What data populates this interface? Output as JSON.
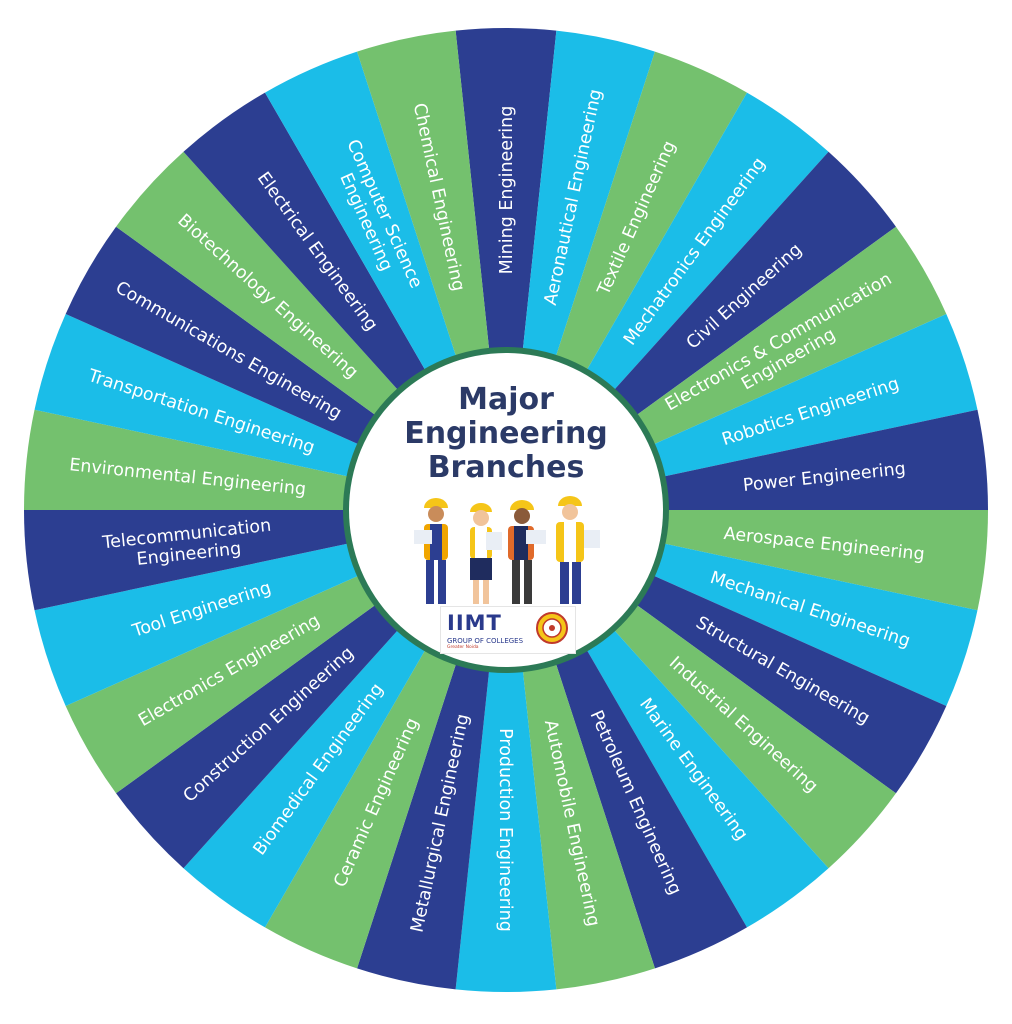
{
  "title_lines": [
    "Major",
    "Engineering",
    "Branches"
  ],
  "segments": [
    {
      "lines": [
        "Mining Engineering"
      ],
      "color": "dark"
    },
    {
      "lines": [
        "Aeronautical Engineering"
      ],
      "color": "cyan"
    },
    {
      "lines": [
        "Textile Engineering"
      ],
      "color": "green"
    },
    {
      "lines": [
        "Mechatronics Engineering"
      ],
      "color": "cyan"
    },
    {
      "lines": [
        "Civil Engineering"
      ],
      "color": "dark"
    },
    {
      "lines": [
        "Electronics & Communication",
        "Engineering"
      ],
      "color": "green"
    },
    {
      "lines": [
        "Robotics Engineering"
      ],
      "color": "cyan"
    },
    {
      "lines": [
        "Power Engineering"
      ],
      "color": "dark"
    },
    {
      "lines": [
        "Aerospace Engineering"
      ],
      "color": "green"
    },
    {
      "lines": [
        "Mechanical Engineering"
      ],
      "color": "cyan"
    },
    {
      "lines": [
        "Structural Engineering"
      ],
      "color": "dark"
    },
    {
      "lines": [
        "Industrial Engineering"
      ],
      "color": "green"
    },
    {
      "lines": [
        "Marine Engineering"
      ],
      "color": "cyan"
    },
    {
      "lines": [
        "Petroleum Engineering"
      ],
      "color": "dark"
    },
    {
      "lines": [
        "Automobile Engineering"
      ],
      "color": "green"
    },
    {
      "lines": [
        "Production Engineering"
      ],
      "color": "cyan"
    },
    {
      "lines": [
        "Metallurgical Engineering"
      ],
      "color": "dark"
    },
    {
      "lines": [
        "Ceramic Engineering"
      ],
      "color": "green"
    },
    {
      "lines": [
        "Biomedical Engineering"
      ],
      "color": "cyan"
    },
    {
      "lines": [
        "Construction Engineering"
      ],
      "color": "dark"
    },
    {
      "lines": [
        "Electronics Engineering"
      ],
      "color": "green"
    },
    {
      "lines": [
        "Tool Engineering"
      ],
      "color": "cyan"
    },
    {
      "lines": [
        "Telecommunication",
        "Engineering"
      ],
      "color": "dark"
    },
    {
      "lines": [
        "Environmental Engineering"
      ],
      "color": "green"
    },
    {
      "lines": [
        "Transportation Engineering"
      ],
      "color": "cyan"
    },
    {
      "lines": [
        "Communications Engineering"
      ],
      "color": "dark"
    },
    {
      "lines": [
        "Biotechnology Engineering"
      ],
      "color": "green"
    },
    {
      "lines": [
        "Electrical Engineering"
      ],
      "color": "dark"
    },
    {
      "lines": [
        "Computer Science",
        "Engineering"
      ],
      "color": "cyan"
    },
    {
      "lines": [
        "Chemical Engineering"
      ],
      "color": "green"
    }
  ],
  "colors": {
    "dark": "#2c3e91",
    "cyan": "#1bbde8",
    "green": "#74c16e",
    "title": "#2b3a67"
  },
  "logo": {
    "name": "IIMT",
    "subtitle": "GROUP OF COLLEGES",
    "tagline": "Greater Noida"
  }
}
